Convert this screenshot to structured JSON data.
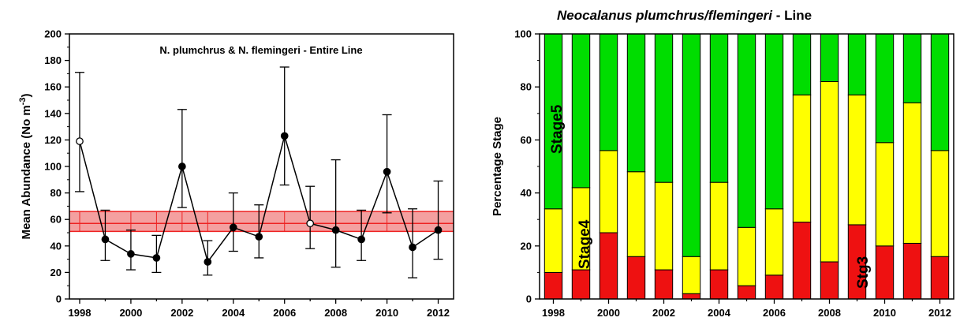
{
  "chart_data": [
    {
      "type": "line",
      "title": "N. plumchrus & N. flemingeri - Entire Line",
      "ylabel": "Mean Abundance (No m",
      "ylabel_sup": "-3",
      "ylabel_close": ")",
      "xlabel": "",
      "x": [
        1998,
        1999,
        2000,
        2001,
        2002,
        2003,
        2004,
        2005,
        2006,
        2007,
        2008,
        2009,
        2010,
        2011,
        2012
      ],
      "values": [
        119,
        45,
        34,
        31,
        100,
        28,
        54,
        47,
        123,
        57,
        52,
        45,
        96,
        39,
        52
      ],
      "error_upper": [
        171,
        67,
        52,
        48,
        143,
        44,
        80,
        71,
        175,
        85,
        105,
        67,
        139,
        68,
        89
      ],
      "error_lower": [
        81,
        29,
        22,
        20,
        69,
        18,
        36,
        31,
        86,
        38,
        24,
        29,
        65,
        16,
        30
      ],
      "open_markers": [
        1998,
        2007
      ],
      "reference_band": {
        "lower": 51,
        "mean": 57,
        "upper": 66,
        "color": "#ee2222",
        "fill": "#f4a0a0"
      },
      "xlim": [
        1997.6,
        2012.6
      ],
      "ylim": [
        0,
        200
      ],
      "xticks": [
        "1998",
        "2000",
        "2002",
        "2004",
        "2006",
        "2008",
        "2010",
        "2012"
      ],
      "yticks": [
        "0",
        "20",
        "40",
        "60",
        "80",
        "100",
        "120",
        "140",
        "160",
        "180",
        "200"
      ],
      "grid": false,
      "legend": "none"
    },
    {
      "type": "bar",
      "stacked": true,
      "title_italic": "Neocalanus plumchrus/flemingeri",
      "title_suffix": " - Line",
      "ylabel": "Percentage Stage",
      "xlabel": "",
      "categories": [
        1998,
        1999,
        2000,
        2001,
        2002,
        2003,
        2004,
        2005,
        2006,
        2007,
        2008,
        2009,
        2010,
        2011,
        2012
      ],
      "series": [
        {
          "color": "#ee1111",
          "values": [
            10,
            11,
            25,
            16,
            11,
            2,
            11,
            5,
            9,
            29,
            14,
            28,
            20,
            21,
            16
          ]
        },
        {
          "color": "#ffff00",
          "values": [
            24,
            31,
            31,
            32,
            33,
            14,
            33,
            22,
            25,
            48,
            68,
            49,
            39,
            53,
            40
          ]
        },
        {
          "color": "#00dd00",
          "values": [
            66,
            58,
            44,
            52,
            56,
            84,
            56,
            73,
            66,
            23,
            18,
            23,
            41,
            26,
            44
          ]
        }
      ],
      "annotations": [
        "Stage5",
        "Stage4",
        "Stg3"
      ],
      "xticks": [
        "1998",
        "2000",
        "2002",
        "2004",
        "2006",
        "2008",
        "2010",
        "2012"
      ],
      "yticks": [
        "0",
        "20",
        "40",
        "60",
        "80",
        "100"
      ],
      "ylim": [
        0,
        100
      ],
      "grid": false,
      "legend": "none"
    }
  ]
}
